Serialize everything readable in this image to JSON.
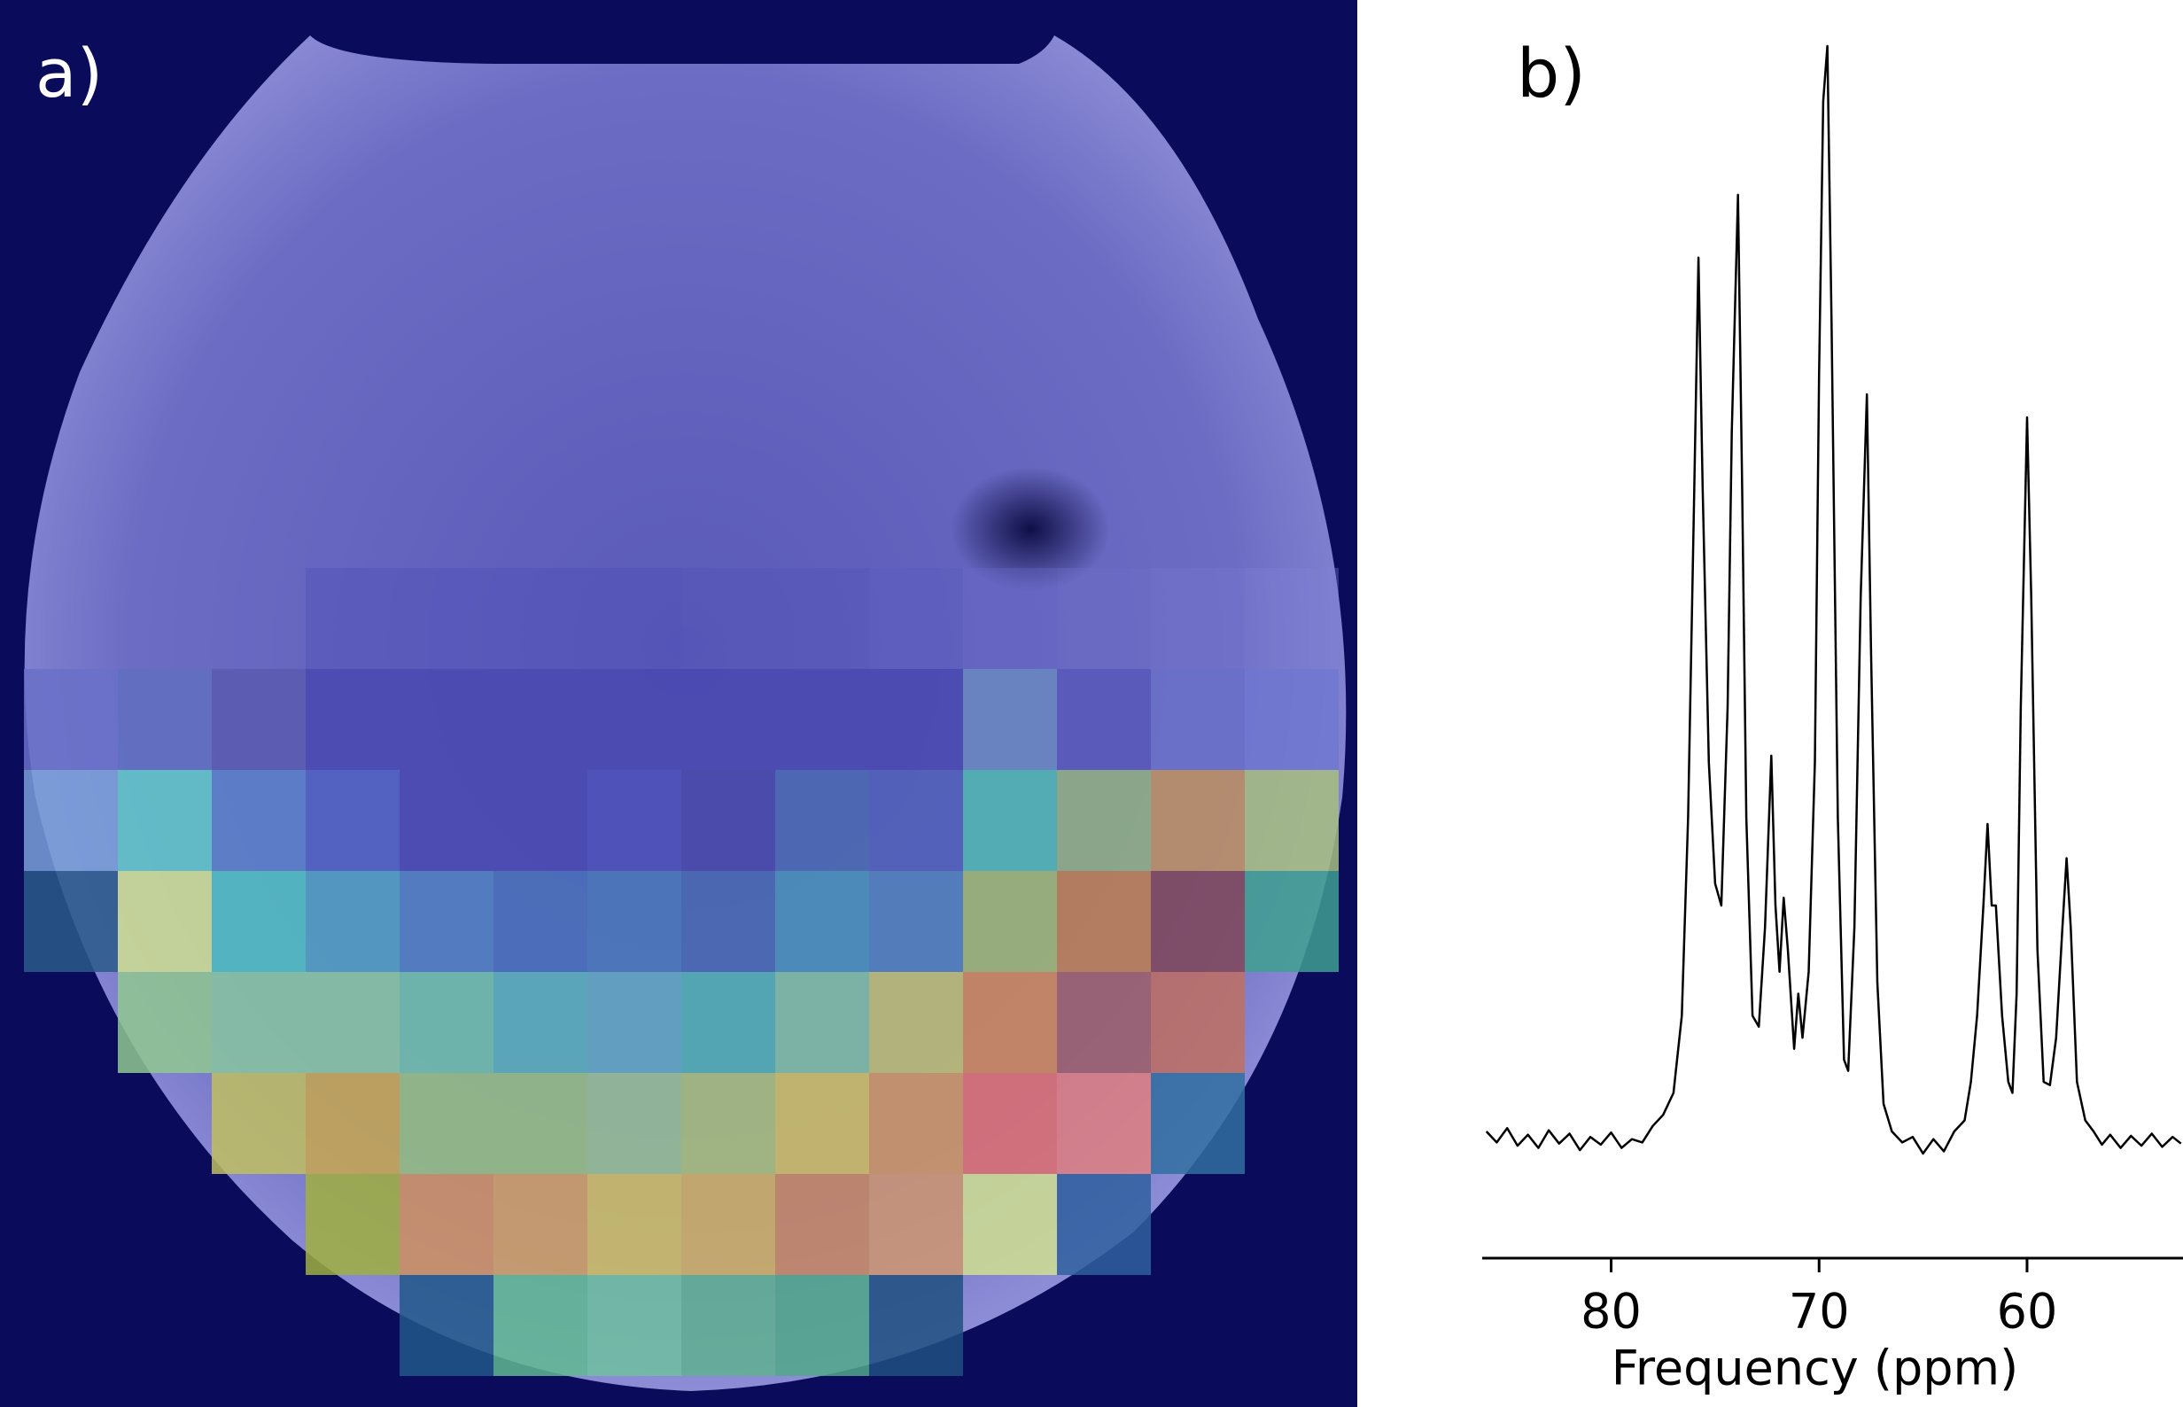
{
  "panels": {
    "a": {
      "label": "a)"
    },
    "b": {
      "label": "b)"
    }
  },
  "chart_data": {
    "type": "line",
    "x_label": "Frequency (ppm)",
    "x": [
      86.0,
      85.5,
      85.0,
      84.5,
      84.0,
      83.5,
      83.0,
      82.5,
      82.0,
      81.5,
      81.0,
      80.5,
      80.0,
      79.5,
      79.0,
      78.5,
      78.0,
      77.5,
      77.0,
      76.6,
      76.3,
      76.0,
      75.8,
      75.6,
      75.3,
      75.0,
      74.7,
      74.4,
      74.2,
      73.9,
      73.7,
      73.5,
      73.2,
      72.9,
      72.6,
      72.3,
      72.1,
      71.9,
      71.7,
      71.5,
      71.2,
      71.0,
      70.8,
      70.5,
      70.2,
      70.0,
      69.8,
      69.6,
      69.4,
      69.1,
      68.8,
      68.6,
      68.3,
      68.0,
      67.7,
      67.5,
      67.2,
      66.9,
      66.5,
      66.0,
      65.5,
      65.0,
      64.5,
      64.0,
      63.5,
      63.0,
      62.7,
      62.4,
      62.1,
      61.9,
      61.7,
      61.5,
      61.2,
      60.9,
      60.7,
      60.5,
      60.3,
      60.0,
      59.8,
      59.5,
      59.2,
      58.9,
      58.6,
      58.3,
      58.1,
      57.9,
      57.6,
      57.2,
      56.8,
      56.4,
      56.0,
      55.5,
      55.0,
      54.5,
      54.0,
      53.5,
      53.0,
      52.6
    ],
    "series": [
      {
        "color": "#000000",
        "values": [
          1.5,
          0.5,
          1.8,
          0.2,
          1.2,
          0.0,
          1.6,
          0.4,
          1.3,
          -0.2,
          1.0,
          0.3,
          1.4,
          0.0,
          0.8,
          0.5,
          2.0,
          3.0,
          5.0,
          12,
          30,
          60,
          80.8,
          60,
          35,
          24,
          22,
          40,
          65,
          86.5,
          60,
          30,
          12,
          11,
          20,
          35.6,
          22,
          16,
          22.7,
          18,
          9,
          14,
          10,
          16,
          35,
          70,
          95,
          100,
          75,
          30,
          8,
          7,
          20,
          50,
          68.4,
          45,
          15,
          4,
          1.5,
          0.5,
          1.0,
          -0.5,
          0.8,
          -0.3,
          1.5,
          2.5,
          6,
          12,
          22,
          29.4,
          22,
          22,
          12,
          6,
          5,
          14,
          40,
          66.3,
          50,
          18,
          6,
          5.7,
          10,
          20,
          26.3,
          20,
          6,
          2.5,
          1.5,
          0.3,
          1.2,
          0.0,
          1.1,
          0.2,
          1.3,
          0.1,
          1.0,
          0.4
        ]
      }
    ],
    "xlim": [
      86.2,
      52.5
    ],
    "xticks": [
      80,
      70,
      60
    ],
    "ylim": [
      -10,
      100
    ]
  }
}
